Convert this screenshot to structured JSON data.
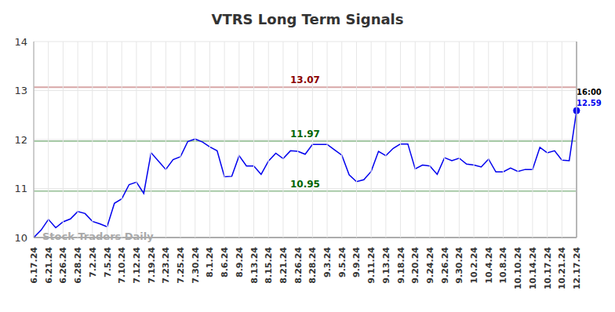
{
  "chart_data": {
    "type": "line",
    "title": "VTRS Long Term Signals",
    "categories": [
      "6.17.24",
      null,
      "6.21.24",
      null,
      "6.26.24",
      null,
      "6.28.24",
      null,
      "7.2.24",
      null,
      "7.5.24",
      null,
      "7.10.24",
      null,
      "7.12.24",
      null,
      "7.19.24",
      null,
      "7.23.24",
      null,
      "7.25.24",
      null,
      "7.30.24",
      null,
      "8.1.24",
      null,
      "8.6.24",
      null,
      "8.9.24",
      null,
      "8.13.24",
      null,
      "8.15.24",
      null,
      "8.21.24",
      null,
      "8.26.24",
      null,
      "8.28.24",
      null,
      "9.3.24",
      null,
      "9.5.24",
      null,
      "9.9.24",
      null,
      "9.11.24",
      null,
      "9.13.24",
      null,
      "9.18.24",
      null,
      "9.20.24",
      null,
      "9.24.24",
      null,
      "9.26.24",
      null,
      "9.30.24",
      null,
      "10.2.24",
      null,
      "10.4.24",
      null,
      "10.8.24",
      null,
      "10.10.24",
      null,
      "10.14.24",
      null,
      "10.17.24",
      null,
      "10.21.24",
      null,
      "12.17.24"
    ],
    "values": [
      10.0,
      10.15,
      10.37,
      10.2,
      10.32,
      10.38,
      10.53,
      10.49,
      10.33,
      10.28,
      10.22,
      10.7,
      10.79,
      11.08,
      11.13,
      10.9,
      11.73,
      11.56,
      11.39,
      11.59,
      11.65,
      11.96,
      12.01,
      11.95,
      11.85,
      11.77,
      11.24,
      11.25,
      11.67,
      11.46,
      11.46,
      11.29,
      11.56,
      11.72,
      11.61,
      11.77,
      11.76,
      11.7,
      11.9,
      11.9,
      11.9,
      11.79,
      11.68,
      11.28,
      11.14,
      11.18,
      11.35,
      11.76,
      11.67,
      11.82,
      11.91,
      11.91,
      11.4,
      11.48,
      11.46,
      11.29,
      11.63,
      11.57,
      11.62,
      11.5,
      11.48,
      11.44,
      11.6,
      11.34,
      11.34,
      11.42,
      11.35,
      11.39,
      11.39,
      11.84,
      11.73,
      11.77,
      11.58,
      11.57,
      12.59
    ],
    "color": "#0000ee",
    "marker": "last",
    "ylim": [
      10,
      14
    ],
    "yticks": [
      10,
      11,
      12,
      13,
      14
    ],
    "grid": true,
    "reference_lines": [
      {
        "value": 13.07,
        "label": "13.07",
        "color": "#8b0000"
      },
      {
        "value": 11.97,
        "label": "11.97",
        "color": "#006400"
      },
      {
        "value": 10.95,
        "label": "10.95",
        "color": "#006400"
      }
    ],
    "last_point_labels": [
      "16:00",
      "12.59"
    ],
    "watermark": "Stock Traders Daily"
  }
}
